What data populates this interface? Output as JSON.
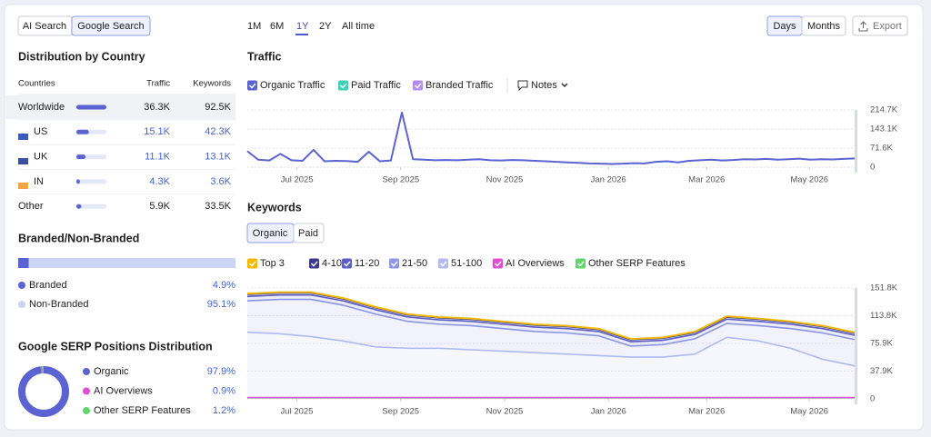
{
  "search_tabs": [
    "AI Search",
    "Google Search"
  ],
  "periods": [
    "1M",
    "6M",
    "1Y",
    "2Y",
    "All time"
  ],
  "view_toggle": [
    "Days",
    "Months"
  ],
  "export": "Export",
  "country_distribution": {
    "title": "Distribution by Country",
    "headers": [
      "Countries",
      "Traffic",
      "Keywords"
    ],
    "rows": [
      {
        "country": "Worldwide",
        "traffic": 36300,
        "traffic_label": "36.3K",
        "keywords": "92.5K"
      },
      {
        "country": "US",
        "traffic": 15100,
        "traffic_label": "15.1K",
        "keywords": "42.3K"
      },
      {
        "country": "UK",
        "traffic": 11100,
        "traffic_label": "11.1K",
        "keywords": "13.1K"
      },
      {
        "country": "IN",
        "traffic": 4300,
        "traffic_label": "4.3K",
        "keywords": "3.6K"
      },
      {
        "country": "Other",
        "traffic": 5900,
        "traffic_label": "5.9K",
        "keywords": "33.5K"
      }
    ]
  },
  "branded": {
    "title": "Branded/Non-Branded",
    "items": [
      {
        "name": "Branded",
        "value": 4.9,
        "label": "4.9%",
        "color": "#5b63d3"
      },
      {
        "name": "Non-Branded",
        "value": 95.1,
        "label": "95.1%",
        "color": "#cdd5f7"
      }
    ]
  },
  "serp_distribution": {
    "title": "Google SERP Positions Distribution",
    "type": "pie",
    "items": [
      {
        "name": "Organic",
        "value": 97.9,
        "label": "97.9%",
        "color": "#5b63d3"
      },
      {
        "name": "AI Overviews",
        "value": 0.9,
        "label": "0.9%",
        "color": "#e04fd3"
      },
      {
        "name": "Other SERP Features",
        "value": 1.2,
        "label": "1.2%",
        "color": "#5ed86a"
      }
    ]
  },
  "traffic_chart": {
    "title": "Traffic",
    "type": "line",
    "notes": "Notes",
    "series": [
      {
        "name": "Organic Traffic",
        "color": "#5b63d3",
        "values": [
          60000,
          28000,
          25000,
          50000,
          26000,
          24000,
          65000,
          22000,
          24000,
          23000,
          20000,
          58000,
          22000,
          25000,
          205000,
          30000,
          28000,
          26000,
          27000,
          26000,
          28000,
          30000,
          26000,
          25000,
          27000,
          26000,
          24000,
          22000,
          20000,
          18000,
          16000,
          14000,
          13000,
          12000,
          13000,
          15000,
          14000,
          20000,
          22000,
          18000,
          24000,
          26000,
          28000,
          25000,
          27000,
          30000,
          29000,
          31000,
          28000,
          30000,
          32000,
          28000,
          30000,
          29000,
          31000,
          33000
        ]
      },
      {
        "name": "Paid Traffic",
        "color": "#3fd1b5"
      },
      {
        "name": "Branded Traffic",
        "color": "#b48cf2"
      }
    ],
    "xlim": [
      0,
      55
    ],
    "xticks": [
      {
        "value": 4.5,
        "label": "Jul 2025"
      },
      {
        "value": 13.9,
        "label": "Sep 2025"
      },
      {
        "value": 23.3,
        "label": "Nov 2025"
      },
      {
        "value": 32.7,
        "label": "Jan 2026"
      },
      {
        "value": 41.6,
        "label": "Mar 2026"
      },
      {
        "value": 50.9,
        "label": "May 2026"
      }
    ],
    "ylim": [
      0,
      214700
    ],
    "yticks": [
      0,
      {
        "value": 71600,
        "label": "71.6K"
      },
      {
        "value": 143100,
        "label": "143.1K"
      },
      {
        "value": 214700,
        "label": "214.7K"
      }
    ],
    "grid": true
  },
  "keywords_chart": {
    "title": "Keywords",
    "type": "stacked_area",
    "tabs": [
      "Organic",
      "Paid"
    ],
    "series": [
      {
        "name": "Top 3",
        "color": "#f5b800",
        "values": [
          800,
          800,
          800,
          800,
          800,
          800,
          800,
          800,
          800,
          800,
          800,
          800,
          800,
          800,
          800,
          800,
          800,
          800,
          800,
          800
        ]
      },
      {
        "name": "4-10",
        "color": "#3c3a8e",
        "values": [
          3000,
          3000,
          3000,
          3000,
          3000,
          3000,
          3000,
          3000,
          3000,
          3000,
          3000,
          3000,
          3000,
          3000,
          3000,
          3000,
          3000,
          3000,
          3000,
          3000
        ]
      },
      {
        "name": "11-20",
        "color": "#5b5fc7",
        "values": [
          6000,
          6000,
          6000,
          6000,
          6000,
          6000,
          6000,
          6000,
          6000,
          6000,
          6000,
          6000,
          6000,
          6000,
          6000,
          6000,
          6000,
          6000,
          6000,
          6000
        ]
      },
      {
        "name": "21-50",
        "color": "#8f98e6",
        "values": [
          43000,
          47000,
          51000,
          49000,
          45000,
          37000,
          33000,
          33000,
          31000,
          29000,
          29000,
          27000,
          15000,
          17000,
          21000,
          19000,
          21000,
          27000,
          36000,
          36000
        ]
      },
      {
        "name": "51-100",
        "color": "#b2bcf2",
        "values": [
          89400,
          87400,
          83400,
          77400,
          69400,
          67400,
          67400,
          65400,
          63400,
          61400,
          59400,
          57400,
          55400,
          55400,
          59400,
          82400,
          77400,
          67400,
          52400,
          43400
        ]
      },
      {
        "name": "AI Overviews",
        "color": "#e04fd3",
        "values": [
          300,
          300,
          300,
          300,
          300,
          300,
          300,
          300,
          300,
          300,
          300,
          300,
          300,
          300,
          300,
          300,
          300,
          300,
          300,
          300
        ]
      },
      {
        "name": "Other SERP Features",
        "color": "#5ed86a",
        "values": [
          1500,
          1500,
          1500,
          1500,
          1500,
          1500,
          1500,
          1500,
          1500,
          1500,
          1500,
          1500,
          1500,
          1500,
          1500,
          1500,
          1500,
          1500,
          1500,
          1500
        ]
      }
    ],
    "xlim": [
      0,
      19
    ],
    "xticks": [
      {
        "value": 1.55,
        "label": "Jul 2025"
      },
      {
        "value": 4.8,
        "label": "Sep 2025"
      },
      {
        "value": 8.05,
        "label": "Nov 2025"
      },
      {
        "value": 11.3,
        "label": "Jan 2026"
      },
      {
        "value": 14.37,
        "label": "Mar 2026"
      },
      {
        "value": 17.58,
        "label": "May 2026"
      }
    ],
    "ylim": [
      0,
      151800
    ],
    "yticks": [
      0,
      {
        "value": 37900,
        "label": "37.9K"
      },
      {
        "value": 75900,
        "label": "75.9K"
      },
      {
        "value": 113800,
        "label": "113.8K"
      },
      {
        "value": 151800,
        "label": "151.8K"
      }
    ],
    "grid": true
  }
}
